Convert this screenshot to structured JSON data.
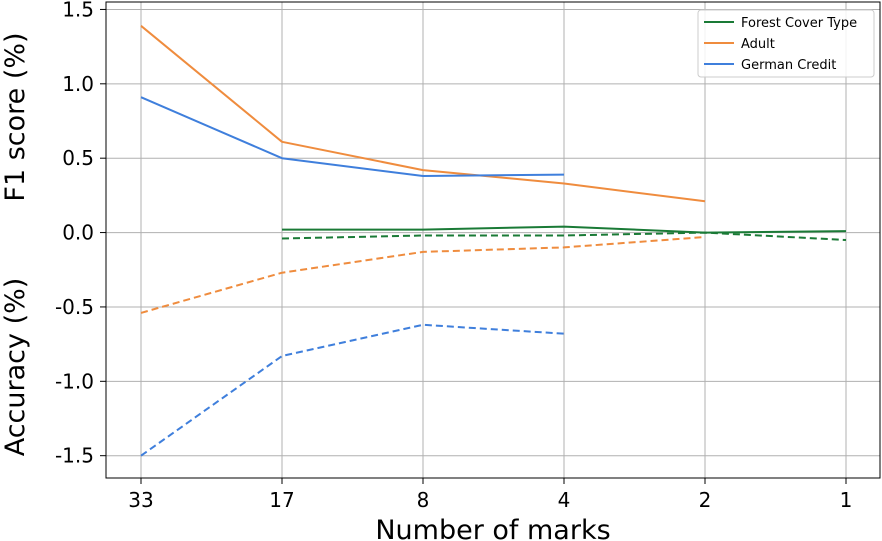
{
  "chart_data": {
    "type": "line",
    "title": "",
    "xlabel": "Number of marks",
    "ylabel_upper": "F1 score (%)",
    "ylabel_lower": "Accuracy (%)",
    "x": [
      "33",
      "17",
      "8",
      "4",
      "2",
      "1"
    ],
    "ylim": [
      -1.65,
      1.55
    ],
    "yticks": [
      "1.5",
      "1.0",
      "0.5",
      "0.0",
      "-0.5",
      "-1.0",
      "-1.5"
    ],
    "ytick_values": [
      1.5,
      1.0,
      0.5,
      0.0,
      -0.5,
      -1.0,
      -1.5
    ],
    "grid": true,
    "legend_position": "top-right",
    "series": [
      {
        "name": "Forest Cover Type",
        "color": "#1a7a36",
        "f1": [
          null,
          0.02,
          0.02,
          0.04,
          0.0,
          0.01
        ],
        "accuracy": [
          null,
          -0.04,
          -0.02,
          -0.02,
          0.0,
          -0.05
        ]
      },
      {
        "name": "Adult",
        "color": "#ef8c3e",
        "f1": [
          1.39,
          0.61,
          0.42,
          0.33,
          0.21,
          null
        ],
        "accuracy": [
          -0.54,
          -0.27,
          -0.13,
          -0.1,
          -0.03,
          null
        ]
      },
      {
        "name": "German Credit",
        "color": "#3f7fdc",
        "f1": [
          0.91,
          0.5,
          0.38,
          0.39,
          null,
          null
        ],
        "accuracy": [
          -1.5,
          -0.83,
          -0.62,
          -0.68,
          null,
          null
        ]
      }
    ]
  }
}
